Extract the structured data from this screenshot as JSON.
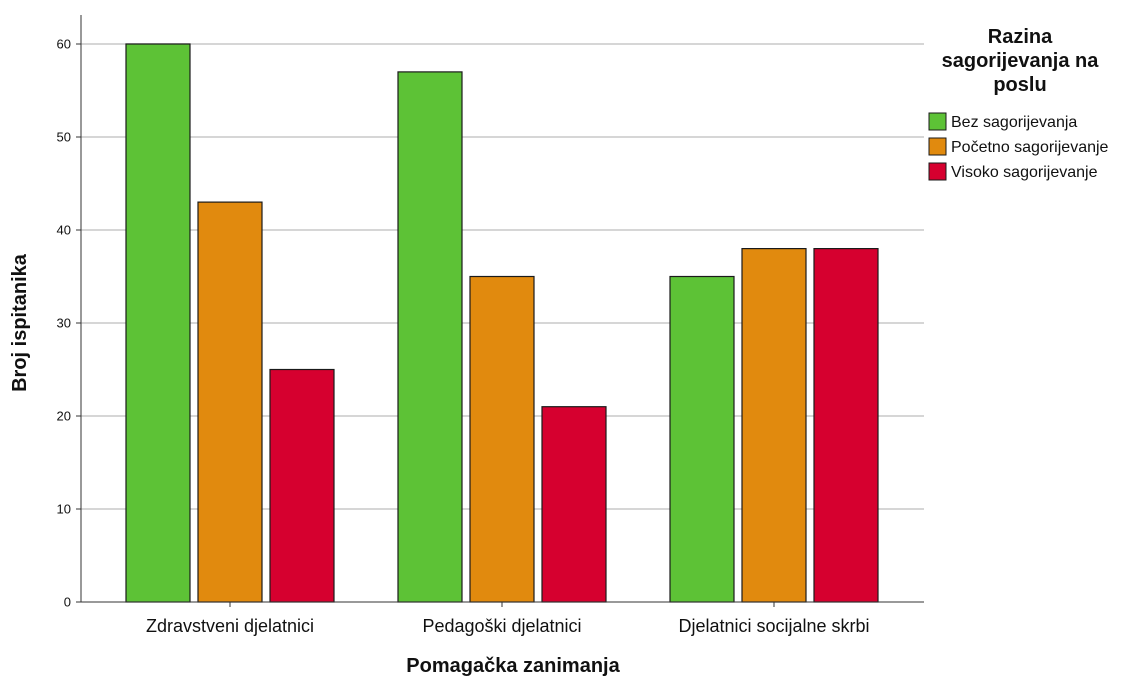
{
  "chart_data": {
    "type": "bar",
    "categories": [
      "Zdravstveni djelatnici",
      "Pedagoški djelatnici",
      "Djelatnici socijalne skrbi"
    ],
    "series": [
      {
        "name": "Bez sagorijevanja",
        "color": "#5dc236",
        "values": [
          60,
          57,
          35
        ]
      },
      {
        "name": "Početno sagorijevanje",
        "color": "#e18a0e",
        "values": [
          43,
          35,
          38
        ]
      },
      {
        "name": "Visoko sagorijevanje",
        "color": "#d6002f",
        "values": [
          25,
          21,
          38
        ]
      }
    ],
    "xlabel": "Pomagačka zanimanja",
    "ylabel": "Broj ispitanika",
    "ylim": [
      0,
      60
    ],
    "yticks": [
      0,
      10,
      20,
      30,
      40,
      50,
      60
    ],
    "grid": "horizontal",
    "legend": {
      "title_lines": [
        "Razina",
        "sagorijevanja na",
        "poslu"
      ],
      "placement": "right"
    }
  }
}
